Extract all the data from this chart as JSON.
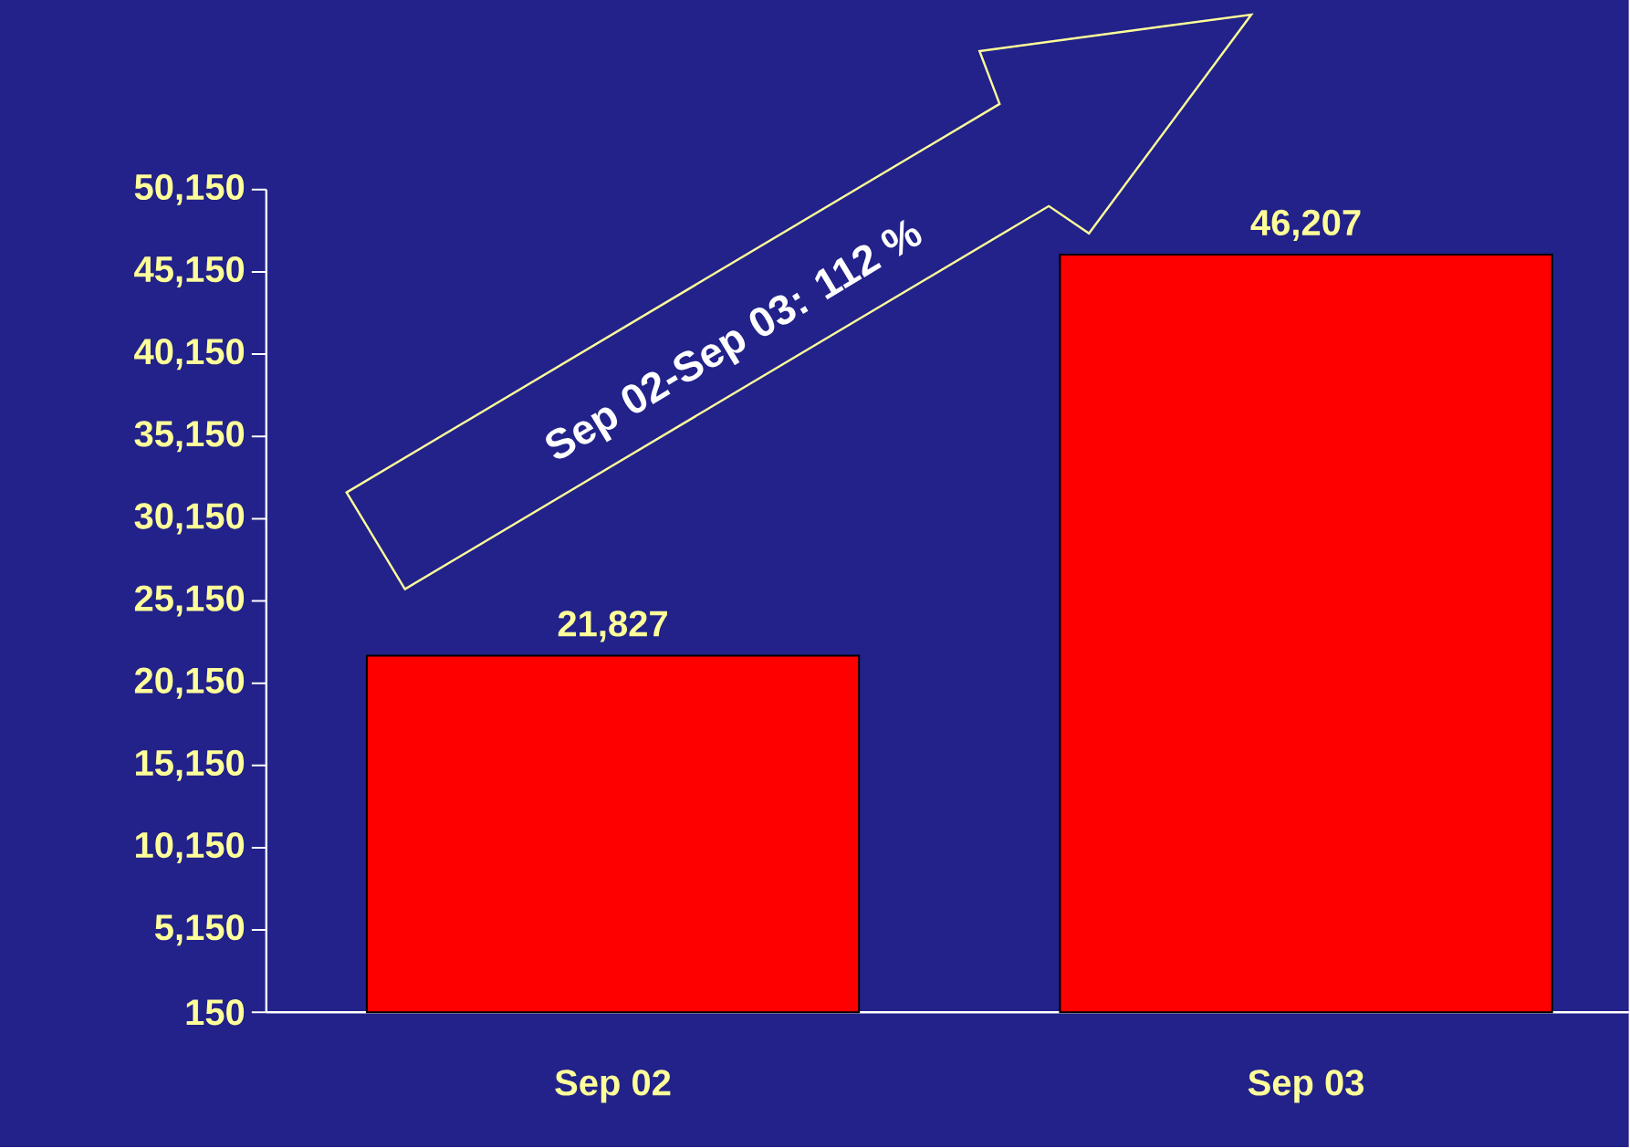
{
  "chart_data": {
    "type": "bar",
    "categories": [
      "Sep 02",
      "Sep 03"
    ],
    "values": [
      21827,
      46207
    ],
    "value_labels": [
      "21,827",
      "46,207"
    ],
    "color": "#ff0000",
    "ylim": [
      150,
      50150
    ],
    "yticks": [
      {
        "value": 150,
        "label": "150"
      },
      {
        "value": 5150,
        "label": "5,150"
      },
      {
        "value": 10150,
        "label": "10,150"
      },
      {
        "value": 15150,
        "label": "15,150"
      },
      {
        "value": 20150,
        "label": "20,150"
      },
      {
        "value": 25150,
        "label": "25,150"
      },
      {
        "value": 30150,
        "label": "30,150"
      },
      {
        "value": 35150,
        "label": "35,150"
      },
      {
        "value": 40150,
        "label": "40,150"
      },
      {
        "value": 45150,
        "label": "45,150"
      },
      {
        "value": 50150,
        "label": "50,150"
      }
    ],
    "annotations": [
      "Sep 02-Sep 03: 112 %"
    ]
  }
}
